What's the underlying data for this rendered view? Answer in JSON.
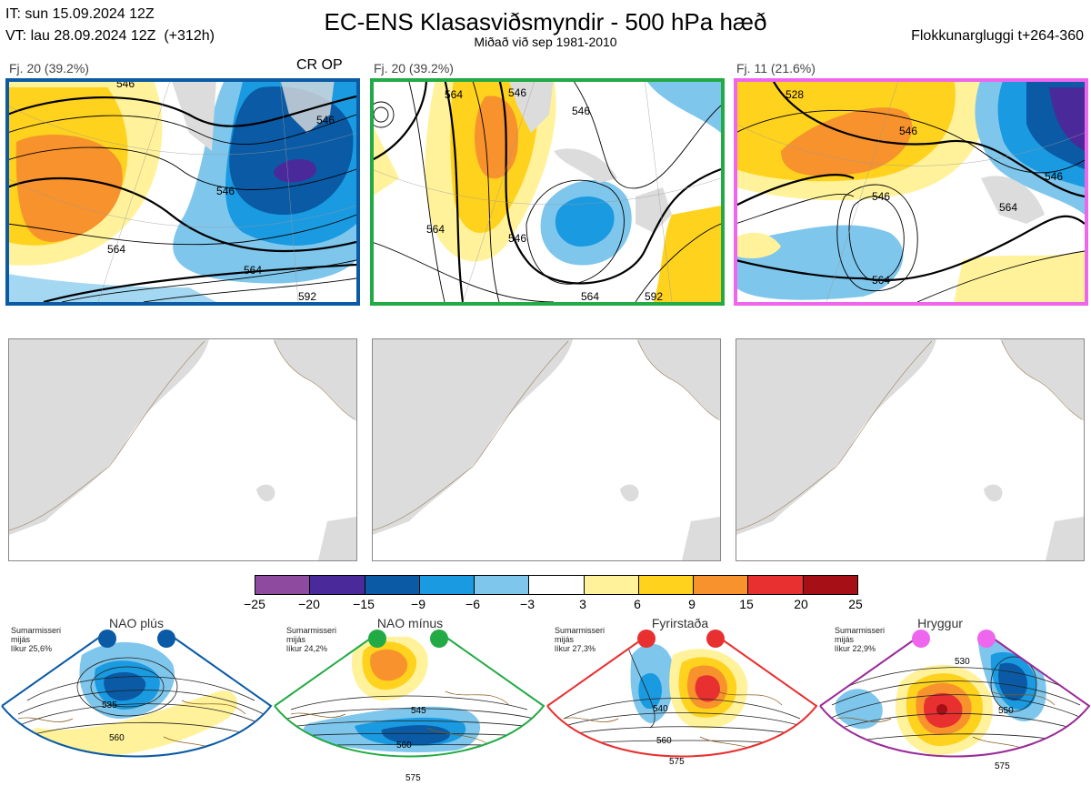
{
  "header": {
    "it_line": "IT: sun 15.09.2024 12Z",
    "vt_line": "VT: lau 28.09.2024 12Z  (+312h)",
    "title": "EC-ENS Klasasviðsmyndir - 500 hPa hæð",
    "subtitle": "Miðað við sep 1981-2010",
    "window": "Flokkunargluggi t+264-360"
  },
  "clusters": [
    {
      "label": "Fj. 20 (39.2%)",
      "tag": "CR OP",
      "border_color": "#0a5aa5",
      "contour_labels": [
        "546",
        "564",
        "546",
        "546",
        "564",
        "592"
      ]
    },
    {
      "label": "Fj. 20 (39.2%)",
      "tag": "",
      "border_color": "#22aa44",
      "contour_labels": [
        "564",
        "546",
        "546",
        "564",
        "546",
        "564",
        "592"
      ]
    },
    {
      "label": "Fj. 11 (21.6%)",
      "tag": "",
      "border_color": "#ee66ee",
      "contour_labels": [
        "528",
        "546",
        "546",
        "564",
        "546",
        "564"
      ]
    }
  ],
  "colorbar": {
    "ticks": [
      "−25",
      "−20",
      "−15",
      "−9",
      "−6",
      "−3",
      "3",
      "6",
      "9",
      "15",
      "20",
      "25"
    ],
    "colors": [
      "#8e4a9e",
      "#4a2a9a",
      "#0a5aa5",
      "#1a9ae0",
      "#7ec6ec",
      "#ffffff",
      "#fff29a",
      "#ffd21e",
      "#f7922d",
      "#e83030",
      "#a50f15"
    ]
  },
  "regimes": [
    {
      "name": "NAO plús",
      "info": "Sumarmisseri\nmijás\nlíkur 25,6%",
      "color": "#0a5aa5",
      "labels": [
        "535",
        "560"
      ]
    },
    {
      "name": "NAO mínus",
      "info": "Sumarmisseri\nmijás\nlíkur 24,2%",
      "color": "#22aa44",
      "labels": [
        "545",
        "560",
        "575"
      ]
    },
    {
      "name": "Fyrirstaða",
      "info": "Sumarmisseri\nmijás\nlíkur 27,3%",
      "color": "#e83030",
      "labels": [
        "540",
        "560",
        "575"
      ]
    },
    {
      "name": "Hryggur",
      "info": "Sumarmisseri\nmijás\nlíkur 22,9%",
      "color": "#9a2a9a",
      "labels": [
        "530",
        "550",
        "575"
      ]
    }
  ]
}
